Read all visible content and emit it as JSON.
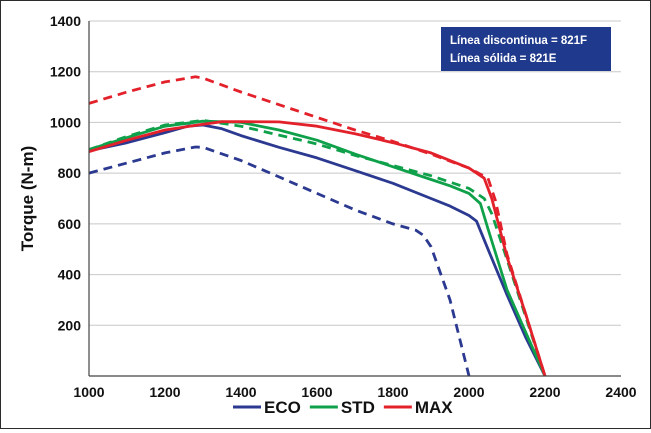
{
  "chart_data": {
    "type": "line",
    "title": "",
    "xlabel": "",
    "ylabel": "Torque (N-m)",
    "xlim": [
      1000,
      2400
    ],
    "ylim": [
      0,
      1400
    ],
    "x_ticks": [
      "1000",
      "1200",
      "1400",
      "1600",
      "1800",
      "2000",
      "2200",
      "2400"
    ],
    "y_ticks": [
      "200",
      "400",
      "600",
      "800",
      "1000",
      "1200",
      "1400"
    ],
    "grid": "horizontal",
    "legend_position": "bottom",
    "note_position": "top-right",
    "note_lines": [
      "Línea discontinua = 821F",
      "Línea sólida = 821E"
    ],
    "series": [
      {
        "name": "ECO",
        "style": "solid",
        "color": "#2b3990",
        "x": [
          1000,
          1100,
          1200,
          1260,
          1300,
          1350,
          1400,
          1500,
          1600,
          1700,
          1800,
          1900,
          1950,
          2000,
          2020,
          2050,
          2100,
          2150,
          2200
        ],
        "y": [
          888,
          920,
          960,
          985,
          990,
          975,
          948,
          902,
          860,
          810,
          760,
          700,
          670,
          633,
          610,
          500,
          320,
          150,
          0
        ]
      },
      {
        "name": "ECO",
        "style": "dashed",
        "color": "#2b3990",
        "x": [
          1000,
          1100,
          1200,
          1280,
          1300,
          1400,
          1500,
          1600,
          1700,
          1800,
          1860,
          1880,
          1900,
          1950,
          2000
        ],
        "y": [
          800,
          840,
          880,
          903,
          902,
          850,
          785,
          720,
          655,
          600,
          575,
          555,
          510,
          300,
          0
        ]
      },
      {
        "name": "STD",
        "style": "solid",
        "color": "#0fa04a",
        "x": [
          1000,
          1100,
          1200,
          1300,
          1400,
          1500,
          1600,
          1700,
          1800,
          1900,
          1950,
          2000,
          2030,
          2050,
          2100,
          2150,
          2200
        ],
        "y": [
          893,
          940,
          985,
          1005,
          1000,
          970,
          930,
          875,
          825,
          775,
          750,
          720,
          680,
          580,
          340,
          170,
          0
        ]
      },
      {
        "name": "STD",
        "style": "dashed",
        "color": "#0fa04a",
        "x": [
          1000,
          1100,
          1200,
          1300,
          1400,
          1500,
          1600,
          1700,
          1800,
          1900,
          2000,
          2040,
          2060,
          2100,
          2150,
          2200
        ],
        "y": [
          893,
          945,
          990,
          1008,
          985,
          950,
          915,
          870,
          830,
          790,
          740,
          700,
          640,
          460,
          230,
          0
        ]
      },
      {
        "name": "MAX",
        "style": "solid",
        "color": "#e3212b",
        "x": [
          1000,
          1100,
          1200,
          1300,
          1350,
          1400,
          1500,
          1600,
          1700,
          1800,
          1900,
          2000,
          2040,
          2060,
          2100,
          2150,
          2200
        ],
        "y": [
          885,
          930,
          970,
          993,
          1003,
          1003,
          1002,
          985,
          955,
          920,
          880,
          820,
          780,
          700,
          470,
          240,
          0
        ]
      },
      {
        "name": "MAX",
        "style": "dashed",
        "color": "#e3212b",
        "x": [
          1000,
          1100,
          1200,
          1280,
          1300,
          1400,
          1500,
          1600,
          1700,
          1800,
          1900,
          2000,
          2050,
          2070,
          2100,
          2150,
          2200
        ],
        "y": [
          1075,
          1120,
          1160,
          1180,
          1175,
          1120,
          1070,
          1020,
          970,
          925,
          875,
          820,
          780,
          690,
          480,
          240,
          0
        ]
      }
    ],
    "legend": [
      {
        "label": "ECO",
        "color": "#2b3990"
      },
      {
        "label": "STD",
        "color": "#0fa04a"
      },
      {
        "label": "MAX",
        "color": "#e3212b"
      }
    ],
    "note_bg": "#1f3a8c"
  }
}
